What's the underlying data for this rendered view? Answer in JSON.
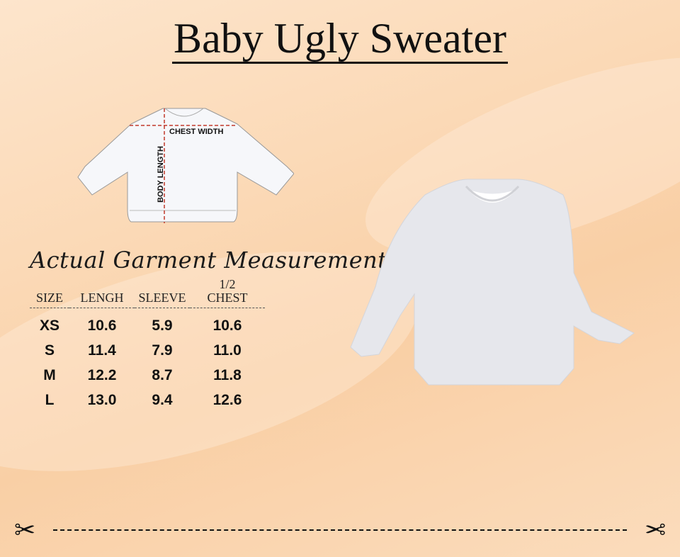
{
  "title": "Baby Ugly Sweater",
  "diagram": {
    "chest_label": "CHEST WIDTH",
    "length_label": "BODY LENGTH"
  },
  "table": {
    "heading": "Actual Garment Measurements",
    "columns": [
      "SIZE",
      "LENGH",
      "SLEEVE",
      "1/2 CHEST"
    ],
    "rows": [
      [
        "XS",
        "10.6",
        "5.9",
        "10.6"
      ],
      [
        "S",
        "11.4",
        "7.9",
        "11.0"
      ],
      [
        "M",
        "12.2",
        "8.7",
        "11.8"
      ],
      [
        "L",
        "13.0",
        "9.4",
        "12.6"
      ]
    ]
  },
  "colors": {
    "background": "#fbd9b6",
    "measure_line": "#c0392b",
    "garment": "#e8e9ee"
  },
  "icons": [
    "scissors-icon",
    "scissors-icon"
  ]
}
